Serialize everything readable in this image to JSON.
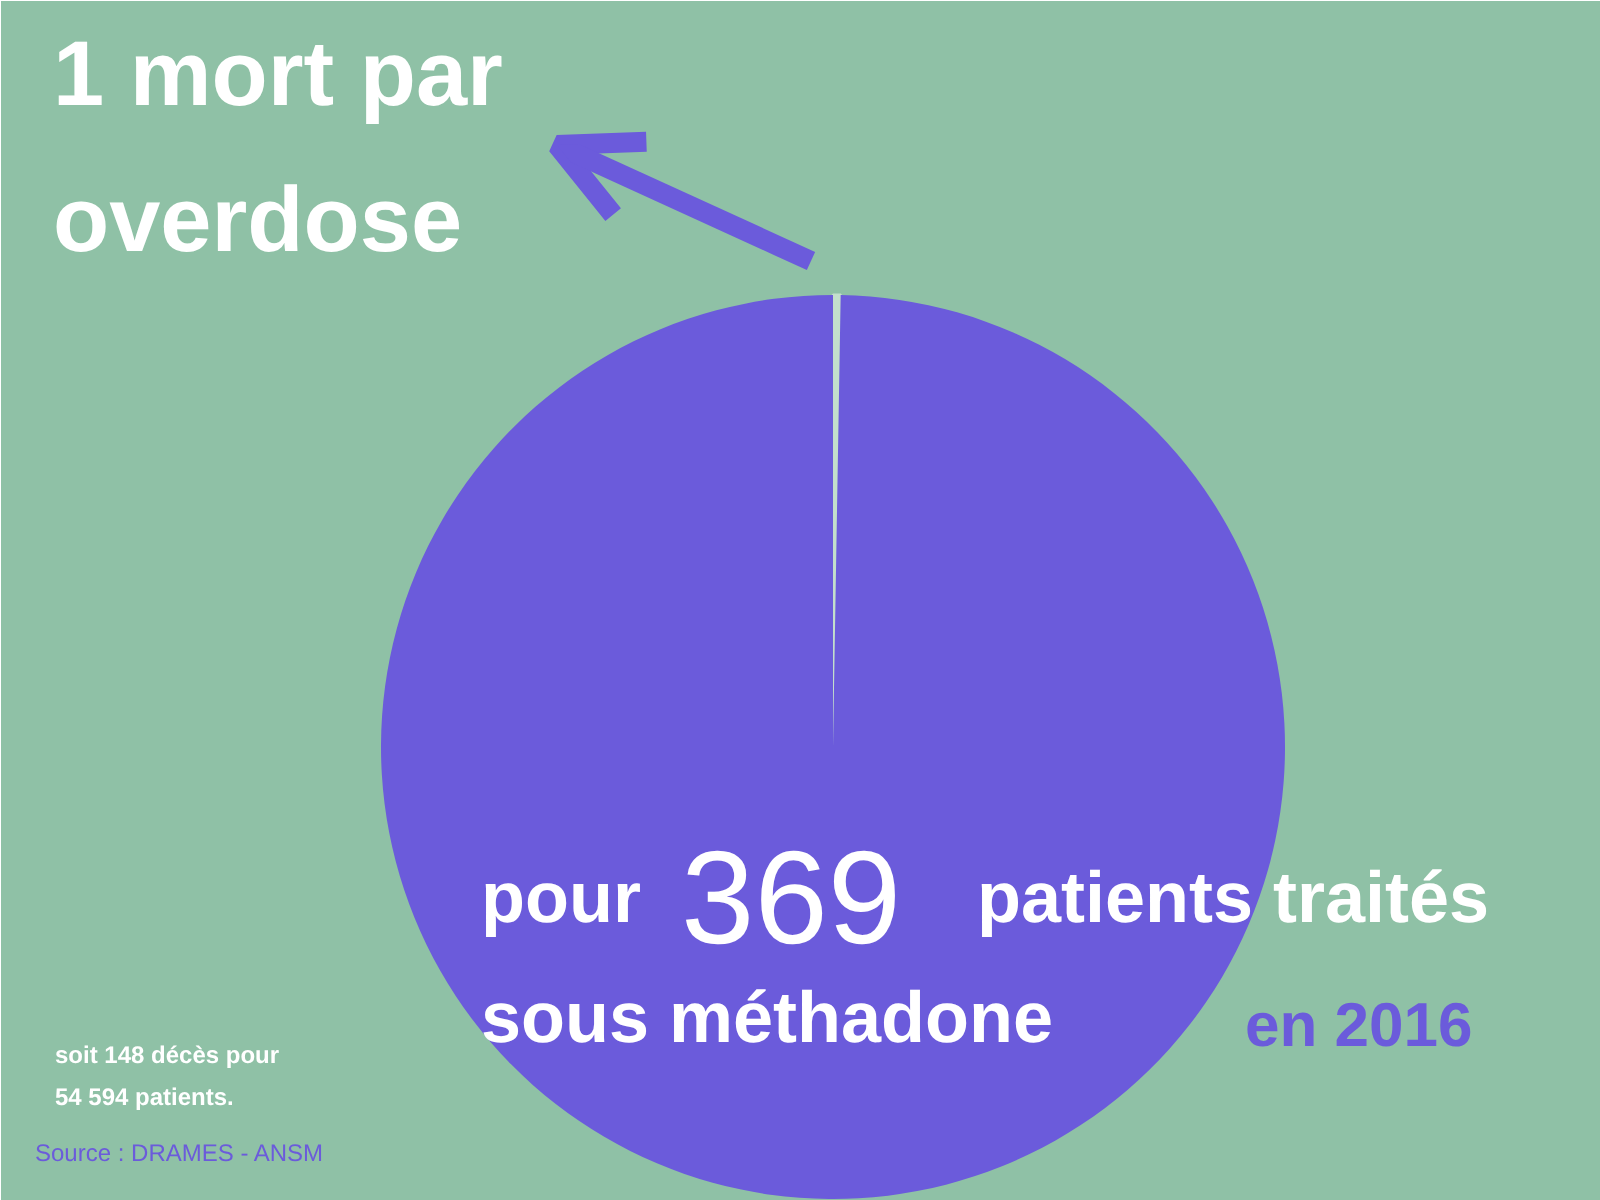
{
  "chart_data": {
    "type": "pie",
    "title": "1 mort par overdose",
    "categories": [
      null,
      null
    ],
    "values": [
      0.27,
      99.73
    ],
    "colors": [
      "#c3dfcc",
      "#6b5bdb"
    ],
    "annotations": [
      "pour",
      "369",
      "patients traités",
      "sous méthadone",
      "en 2016",
      "soit 148 décès pour",
      "54 594 patients.",
      "Source : DRAMES - ANSM"
    ]
  }
}
